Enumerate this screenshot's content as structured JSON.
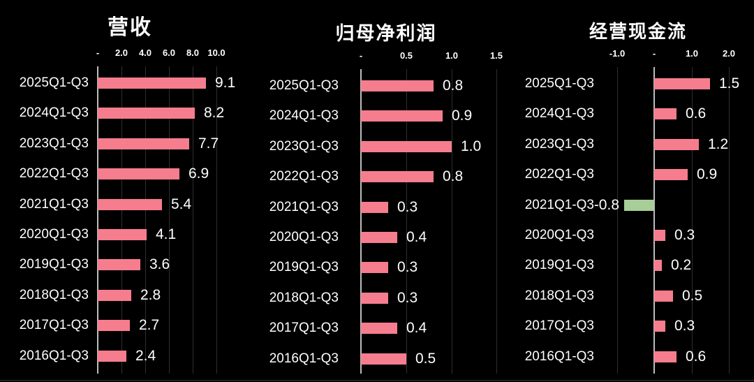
{
  "colors": {
    "background": "#000000",
    "bar_positive": "#f67d8e",
    "bar_negative": "#a8ce98",
    "axis_line": "#bdbdbd",
    "gridline": "#2f2f2f",
    "text": "#ffffff",
    "bottom_edge": "#383838"
  },
  "chart_data": [
    {
      "type": "bar",
      "orientation": "horizontal",
      "title": "营收",
      "categories": [
        "2025Q1-Q3",
        "2024Q1-Q3",
        "2023Q1-Q3",
        "2022Q1-Q3",
        "2021Q1-Q3",
        "2020Q1-Q3",
        "2019Q1-Q3",
        "2018Q1-Q3",
        "2017Q1-Q3",
        "2016Q1-Q3"
      ],
      "values": [
        9.1,
        8.2,
        7.7,
        6.9,
        5.4,
        4.1,
        3.6,
        2.8,
        2.7,
        2.4
      ],
      "value_labels": [
        "9.1",
        "8.2",
        "7.7",
        "6.9",
        "5.4",
        "4.1",
        "3.6",
        "2.8",
        "2.7",
        "2.4"
      ],
      "ticks": [
        {
          "label": "-",
          "value": 0
        },
        {
          "label": "2.0",
          "value": 2
        },
        {
          "label": "4.0",
          "value": 4
        },
        {
          "label": "6.0",
          "value": 6
        },
        {
          "label": "8.0",
          "value": 8
        },
        {
          "label": "10.0",
          "value": 10
        }
      ],
      "xlim": [
        0,
        11
      ],
      "grid": true,
      "legend": false,
      "bar_color": "#f67d8e"
    },
    {
      "type": "bar",
      "orientation": "horizontal",
      "title": "归母净利润",
      "categories": [
        "2025Q1-Q3",
        "2024Q1-Q3",
        "2023Q1-Q3",
        "2022Q1-Q3",
        "2021Q1-Q3",
        "2020Q1-Q3",
        "2019Q1-Q3",
        "2018Q1-Q3",
        "2017Q1-Q3",
        "2016Q1-Q3"
      ],
      "values": [
        0.8,
        0.9,
        1.0,
        0.8,
        0.3,
        0.4,
        0.3,
        0.3,
        0.4,
        0.5
      ],
      "value_labels": [
        "0.8",
        "0.9",
        "1.0",
        "0.8",
        "0.3",
        "0.4",
        "0.3",
        "0.3",
        "0.4",
        "0.5"
      ],
      "ticks": [
        {
          "label": "-",
          "value": 0
        },
        {
          "label": "0.5",
          "value": 0.5
        },
        {
          "label": "1.0",
          "value": 1
        },
        {
          "label": "1.5",
          "value": 1.5
        }
      ],
      "xlim": [
        0,
        1.7
      ],
      "grid": true,
      "legend": false,
      "bar_color": "#f67d8e"
    },
    {
      "type": "bar",
      "orientation": "horizontal",
      "title": "经营现金流",
      "categories": [
        "2025Q1-Q3",
        "2024Q1-Q3",
        "2023Q1-Q3",
        "2022Q1-Q3",
        "2021Q1-Q3",
        "2020Q1-Q3",
        "2019Q1-Q3",
        "2018Q1-Q3",
        "2017Q1-Q3",
        "2016Q1-Q3"
      ],
      "values": [
        1.5,
        0.6,
        1.2,
        0.9,
        -0.8,
        0.3,
        0.2,
        0.5,
        0.3,
        0.6
      ],
      "value_labels": [
        "1.5",
        "0.6",
        "1.2",
        "0.9",
        "-0.8",
        "0.3",
        "0.2",
        "0.5",
        "0.3",
        "0.6"
      ],
      "ticks": [
        {
          "label": "-1.0",
          "value": -1
        },
        {
          "label": "-",
          "value": 0
        },
        {
          "label": "1.0",
          "value": 1
        },
        {
          "label": "2.0",
          "value": 2
        }
      ],
      "xlim": [
        -1.5,
        2.6
      ],
      "grid": true,
      "legend": false,
      "bar_color": "#f67d8e",
      "negative_bar_color": "#a8ce98"
    }
  ]
}
